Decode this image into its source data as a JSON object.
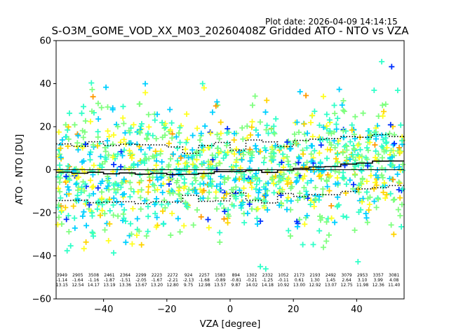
{
  "chart_data": {
    "type": "scatter",
    "plot_date": "Plot date: 2026-04-09 14:14:15",
    "title": "S-O3M_GOME_VOD_XX_M03_20260408Z Gridded ATO - NTO vs VZA",
    "xlabel": "VZA [degree]",
    "ylabel": "ATO - NTO [DU]",
    "xlim": [
      -55,
      55
    ],
    "ylim": [
      -60,
      60
    ],
    "x_ticks": [
      -40,
      -20,
      0,
      20,
      40
    ],
    "y_ticks": [
      -60,
      -40,
      -20,
      0,
      20,
      40,
      60
    ],
    "x_tick_labels": [
      "−40",
      "−20",
      "0",
      "20",
      "40"
    ],
    "y_tick_labels": [
      "−60",
      "−40",
      "−20",
      "0",
      "20",
      "40",
      "60"
    ],
    "marker": "+",
    "colors": [
      "#00d0ff",
      "#7fff7f",
      "#30ffc8",
      "#ffd400",
      "#ffff20",
      "#0030ff",
      "#ff9a00"
    ],
    "bin_centers": [
      -52.5,
      -47.5,
      -42.5,
      -37.5,
      -32.5,
      -27.5,
      -22.5,
      -17.5,
      -12.5,
      -7.5,
      -2.5,
      2.5,
      7.5,
      12.5,
      17.5,
      22.5,
      27.5,
      32.5,
      37.5,
      42.5,
      47.5,
      52.5
    ],
    "bin_edges": [
      -55,
      -50,
      -45,
      -40,
      -35,
      -30,
      -25,
      -20,
      -15,
      -10,
      -5,
      0,
      5,
      10,
      15,
      20,
      25,
      30,
      35,
      40,
      45,
      50,
      55
    ],
    "counts": [
      3949,
      2905,
      3508,
      2461,
      2364,
      2299,
      2223,
      2272,
      924,
      2257,
      1583,
      894,
      1302,
      2332,
      1052,
      2173,
      2193,
      2492,
      3079,
      2953,
      3357,
      3081
    ],
    "means": [
      -1.14,
      -1.64,
      -1.16,
      -1.87,
      -1.51,
      -2.05,
      -1.67,
      -2.21,
      -2.13,
      -1.68,
      -0.89,
      -0.81,
      -0.21,
      -1.25,
      -0.11,
      0.61,
      1.3,
      1.45,
      2.64,
      3.1,
      3.99,
      4.08
    ],
    "stds": [
      13.15,
      12.54,
      14.17,
      13.19,
      13.36,
      13.67,
      13.2,
      12.8,
      9.75,
      12.98,
      13.57,
      9.87,
      14.02,
      14.18,
      10.92,
      13.0,
      12.92,
      13.07,
      12.75,
      11.98,
      12.36,
      11.4
    ],
    "count_labels": [
      "3949",
      "2905",
      "3508",
      "2461",
      "2364",
      "2299",
      "2223",
      "2272",
      "924",
      "2257",
      "1583",
      "894",
      "1302",
      "2332",
      "1052",
      "2173",
      "2193",
      "2492",
      "3079",
      "2953",
      "3357",
      "3081"
    ],
    "mean_labels": [
      "-1.14",
      "-1.64",
      "-1.16",
      "-1.87",
      "-1.51",
      "-2.05",
      "-1.67",
      "-2.21",
      "-2.13",
      "-1.68",
      "-0.89",
      "-0.81",
      "-0.21",
      "-1.25",
      "-0.11",
      "0.61",
      "1.30",
      "1.45",
      "2.64",
      "3.10",
      "3.99",
      "4.08"
    ],
    "std_labels": [
      "13.15",
      "12.54",
      "14.17",
      "13.19",
      "13.36",
      "13.67",
      "13.20",
      "12.80",
      "9.75",
      "12.98",
      "13.57",
      "9.87",
      "14.02",
      "14.18",
      "10.92",
      "13.00",
      "12.92",
      "13.07",
      "12.75",
      "11.98",
      "12.36",
      "11.40"
    ],
    "grid": false,
    "legend": "none"
  }
}
